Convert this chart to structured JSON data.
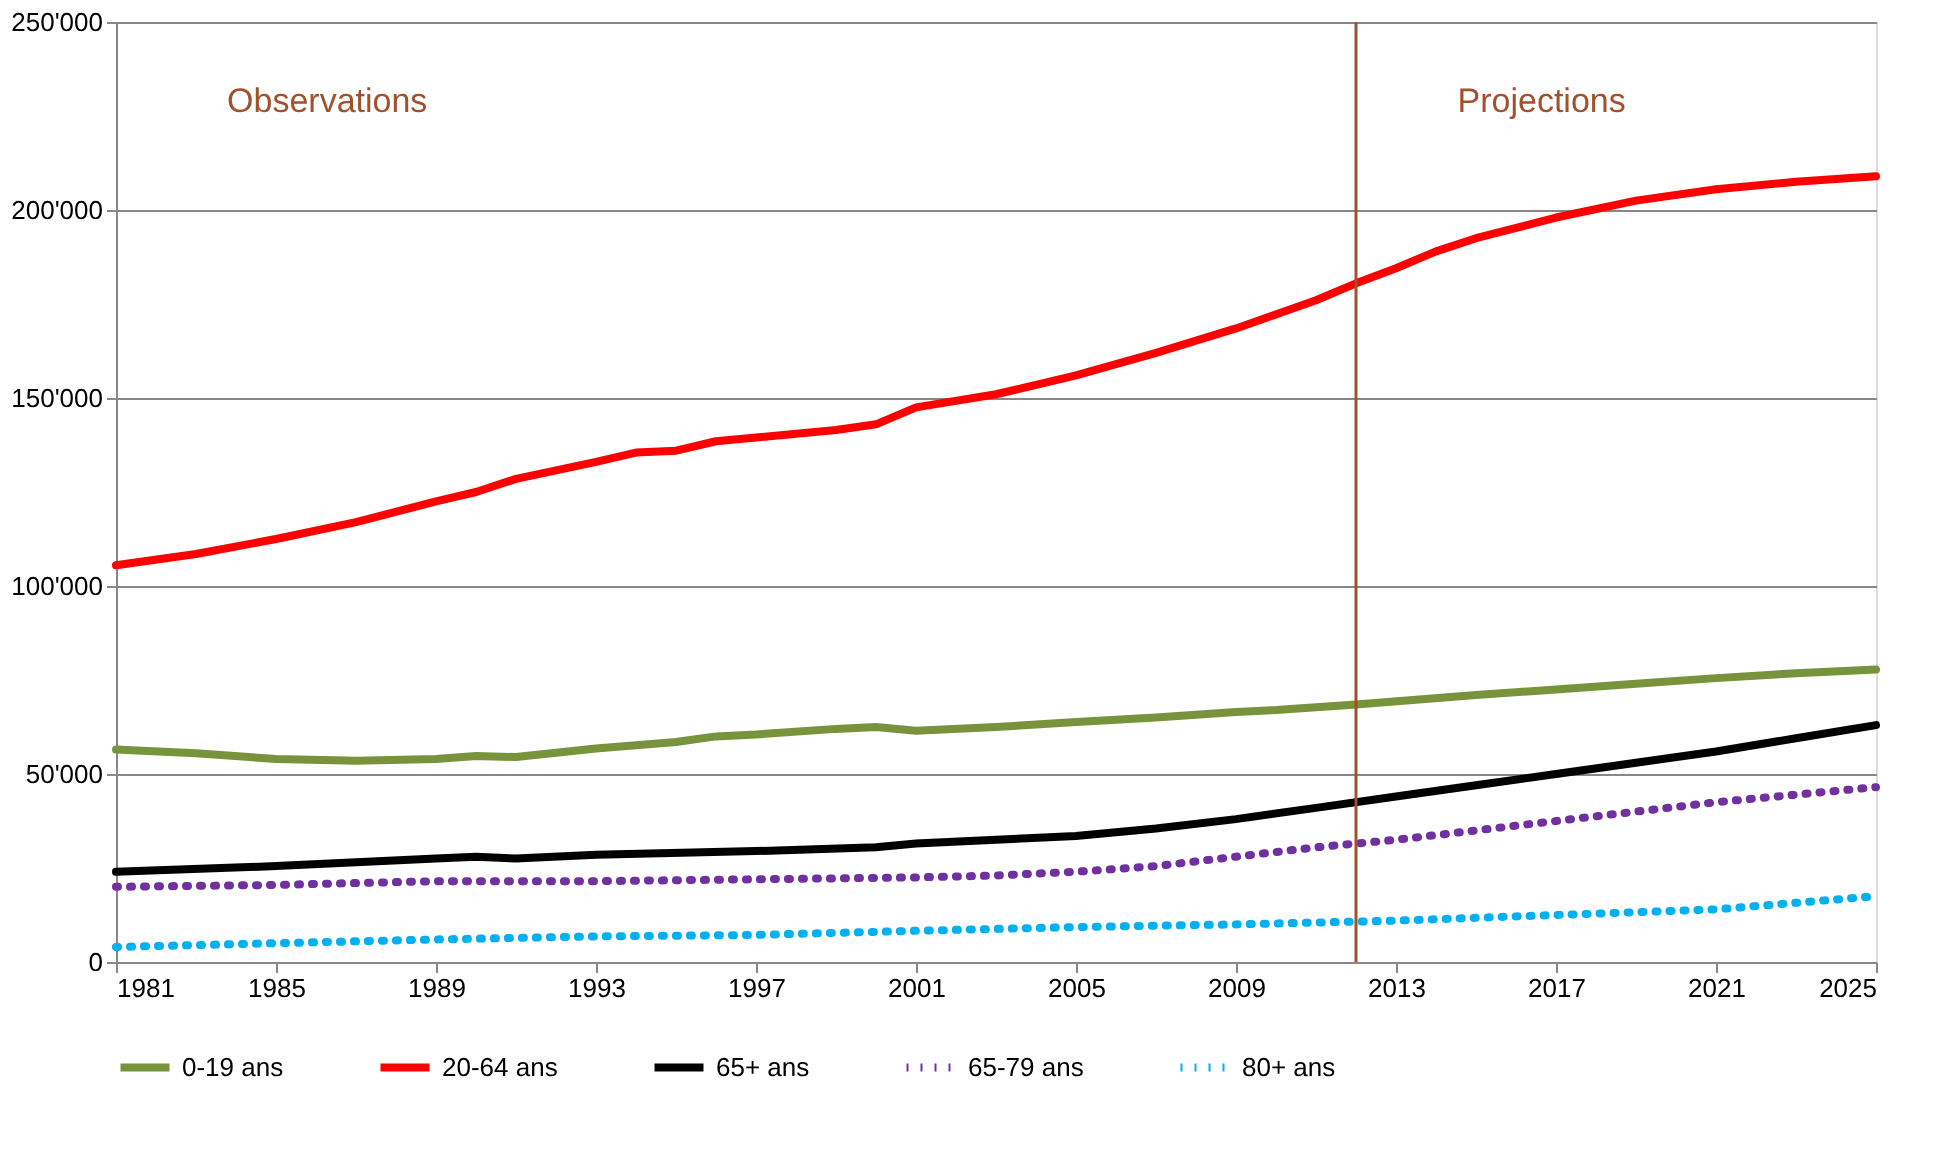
{
  "chart_data": {
    "type": "line",
    "xlim": [
      1981,
      2025
    ],
    "xticks": [
      1981,
      1985,
      1989,
      1993,
      1997,
      2001,
      2005,
      2009,
      2013,
      2017,
      2021,
      2025
    ],
    "ylim": [
      0,
      250000
    ],
    "yticks": [
      {
        "value": 0,
        "label": "0"
      },
      {
        "value": 50000,
        "label": "50'000"
      },
      {
        "value": 100000,
        "label": "100'000"
      },
      {
        "value": 150000,
        "label": "150'000"
      },
      {
        "value": 200000,
        "label": "200'000"
      },
      {
        "value": 250000,
        "label": "250'000"
      }
    ],
    "grid": "y",
    "legend": "bottom",
    "marker": "none",
    "annotations": [
      "Observations",
      "Projections"
    ],
    "ref_lines": [
      {
        "axis": "x",
        "value": 2012,
        "color": "#a0522d",
        "line_style": "solid"
      }
    ],
    "series": [
      {
        "name": "0-19 ans",
        "color": "#77933c",
        "line_style": "solid",
        "x": [
          1981,
          1983,
          1985,
          1987,
          1989,
          1990,
          1991,
          1993,
          1995,
          1996,
          1997,
          1999,
          2000,
          2001,
          2003,
          2005,
          2007,
          2009,
          2010,
          2012,
          2015,
          2017,
          2019,
          2021,
          2023,
          2025
        ],
        "values": [
          56500,
          55500,
          54000,
          53500,
          54000,
          54800,
          54500,
          56800,
          58500,
          60000,
          60500,
          62000,
          62500,
          61500,
          62500,
          63800,
          65000,
          66500,
          67000,
          68500,
          71000,
          72500,
          74000,
          75500,
          76800,
          77800
        ]
      },
      {
        "name": "20-64 ans",
        "color": "#ff0000",
        "line_style": "solid",
        "x": [
          1981,
          1983,
          1985,
          1987,
          1989,
          1990,
          1991,
          1993,
          1994,
          1995,
          1996,
          1997,
          1999,
          2000,
          2001,
          2003,
          2005,
          2007,
          2009,
          2011,
          2012,
          2013,
          2014,
          2015,
          2017,
          2019,
          2021,
          2023,
          2025
        ],
        "values": [
          105500,
          108500,
          112500,
          117000,
          122500,
          125000,
          128500,
          133000,
          135500,
          136000,
          138500,
          139500,
          141500,
          143000,
          147500,
          151000,
          156000,
          162000,
          168500,
          176000,
          180500,
          184500,
          189000,
          192500,
          198000,
          202500,
          205500,
          207500,
          209000
        ]
      },
      {
        "name": "65+ ans",
        "color": "#000000",
        "line_style": "solid",
        "x": [
          1981,
          1985,
          1989,
          1990,
          1991,
          1993,
          1997,
          2000,
          2001,
          2003,
          2005,
          2007,
          2009,
          2011,
          2013,
          2015,
          2017,
          2019,
          2021,
          2023,
          2025
        ],
        "values": [
          24000,
          25500,
          27500,
          28000,
          27500,
          28500,
          29500,
          30500,
          31500,
          32500,
          33500,
          35500,
          38000,
          41000,
          44000,
          47000,
          50000,
          53000,
          56000,
          59500,
          63000
        ]
      },
      {
        "name": "65-79 ans",
        "color": "#7030a0",
        "line_style": "dotted",
        "x": [
          1981,
          1985,
          1989,
          1993,
          1997,
          2001,
          2003,
          2005,
          2007,
          2009,
          2011,
          2013,
          2015,
          2017,
          2019,
          2021,
          2025
        ],
        "values": [
          20000,
          20500,
          21500,
          21500,
          22000,
          22500,
          23000,
          24000,
          25500,
          28000,
          30500,
          32500,
          35000,
          37500,
          40000,
          42500,
          46500
        ]
      },
      {
        "name": "80+ ans",
        "color": "#00b0f0",
        "line_style": "dotted",
        "x": [
          1981,
          1985,
          1989,
          1993,
          1997,
          2001,
          2005,
          2009,
          2013,
          2017,
          2021,
          2025
        ],
        "values": [
          4000,
          5000,
          6000,
          6800,
          7200,
          8300,
          9300,
          10000,
          11000,
          12500,
          14000,
          17500
        ]
      }
    ]
  }
}
